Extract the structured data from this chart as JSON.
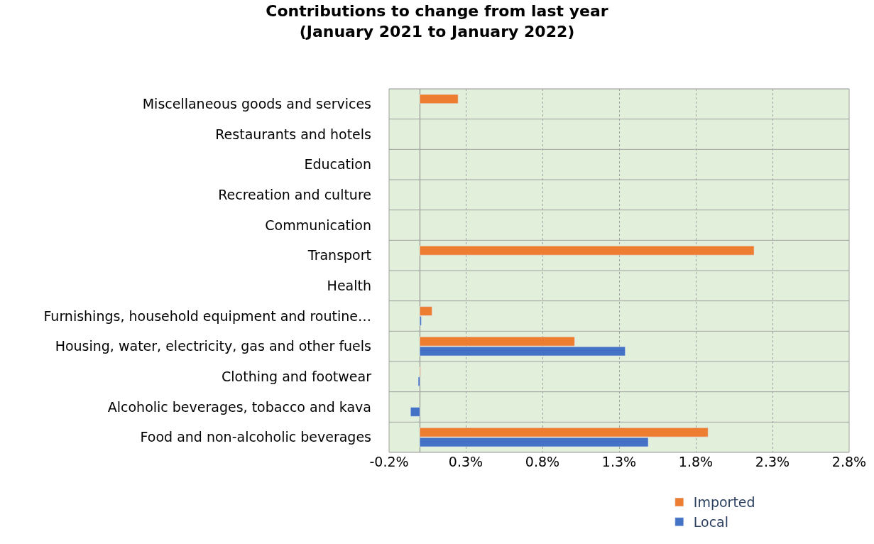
{
  "chart_data": {
    "type": "bar",
    "orientation": "horizontal",
    "title": "Contributions to change from last year\n(January 2021 to January 2022)",
    "categories": [
      "Miscellaneous goods and services",
      "Restaurants and hotels",
      "Education",
      "Recreation and culture",
      "Communication",
      "Transport",
      "Health",
      "Furnishings, household equipment and routine…",
      "Housing, water, electricity, gas and other fuels",
      "Clothing and footwear",
      "Alcoholic beverages, tobacco and kava",
      "Food and non-alcoholic beverages"
    ],
    "series": [
      {
        "name": "Imported",
        "color": "#ed7d31",
        "values": [
          0.25,
          null,
          null,
          null,
          null,
          2.18,
          null,
          0.08,
          1.01,
          0.005,
          null,
          1.88
        ]
      },
      {
        "name": "Local",
        "color": "#4472c4",
        "values": [
          null,
          null,
          null,
          null,
          null,
          null,
          null,
          0.01,
          1.34,
          -0.01,
          -0.06,
          1.49
        ]
      }
    ],
    "xlim": [
      -0.2,
      2.8
    ],
    "xticks": [
      {
        "value": -0.2,
        "label": "-0.2%"
      },
      {
        "value": 0.3,
        "label": "0.3%"
      },
      {
        "value": 0.8,
        "label": "0.8%"
      },
      {
        "value": 1.3,
        "label": "1.3%"
      },
      {
        "value": 1.8,
        "label": "1.8%"
      },
      {
        "value": 2.3,
        "label": "2.3%"
      },
      {
        "value": 2.8,
        "label": "2.8%"
      }
    ],
    "grid": true,
    "legend": "bottom right"
  }
}
